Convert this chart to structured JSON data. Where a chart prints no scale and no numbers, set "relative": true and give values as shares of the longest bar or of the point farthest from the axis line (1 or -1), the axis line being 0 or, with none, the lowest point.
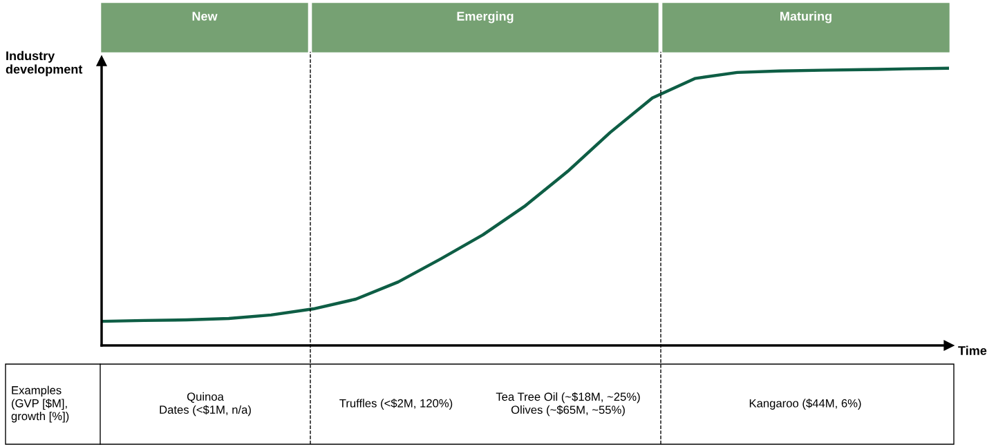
{
  "chart_data": {
    "type": "line",
    "relative": true,
    "xlabel": "Time",
    "ylabel": "Industry development",
    "categories": [
      null,
      null,
      null,
      null,
      null,
      null,
      null,
      null,
      null,
      null,
      null,
      null,
      null,
      null,
      null,
      null,
      null,
      null,
      null,
      null,
      null
    ],
    "series": [
      {
        "color": "#0e5e45",
        "values": [
          0.087,
          0.09,
          0.092,
          0.097,
          0.11,
          0.132,
          0.167,
          0.229,
          0.312,
          0.399,
          0.504,
          0.628,
          0.768,
          0.893,
          0.963,
          0.985,
          0.99,
          0.993,
          0.995,
          0.998,
          1
        ]
      }
    ],
    "annotations": [
      "New",
      "Emerging",
      "Maturing",
      "Examples\n(GVP [$M],\ngrowth [%])",
      "Quinoa\nDates (<$1M, n/a)",
      "Truffles (<$2M, 120%)",
      "Tea Tree Oil (~$18M, ~25%)\nOlives (~$65M, ~55%)",
      "Kangaroo ($44M, 6%)"
    ],
    "grid": false,
    "marker": "none",
    "line_style": "solid"
  }
}
